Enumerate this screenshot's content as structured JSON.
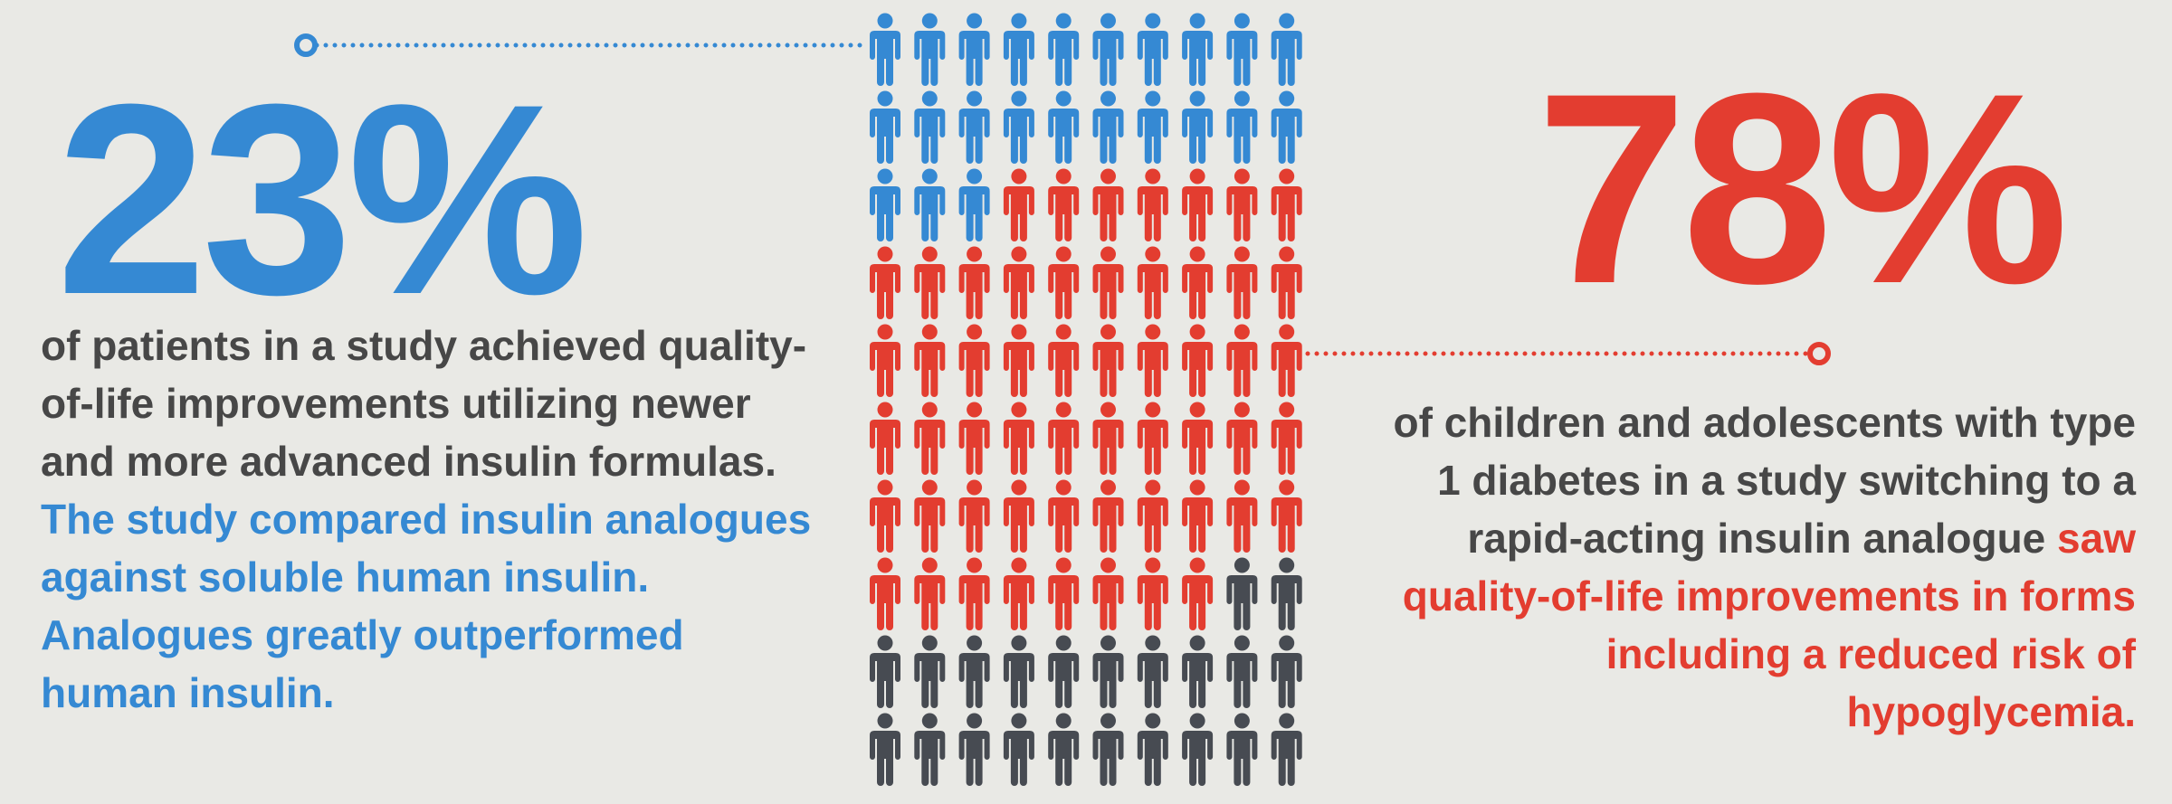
{
  "left": {
    "stat": {
      "value": 23,
      "label": "23%"
    },
    "color": "#3589d3",
    "body": "of patients in a study achieved quality-of-life improvements utilizing newer and more advanced insulin formulas.",
    "highlight": "The study compared insulin analogues against soluble human insulin. Analogues greatly outperformed human insulin."
  },
  "right": {
    "stat": {
      "value": 78,
      "label": "78%"
    },
    "color": "#e33d30",
    "body": "of children and adolescents with type 1 diabetes in a study switching to a rapid-acting insulin analogue",
    "highlight": "saw quality-of-life improvements in forms including a reduced risk of hypoglycemia."
  },
  "people": {
    "total": 100,
    "other_color": "#474b52"
  }
}
